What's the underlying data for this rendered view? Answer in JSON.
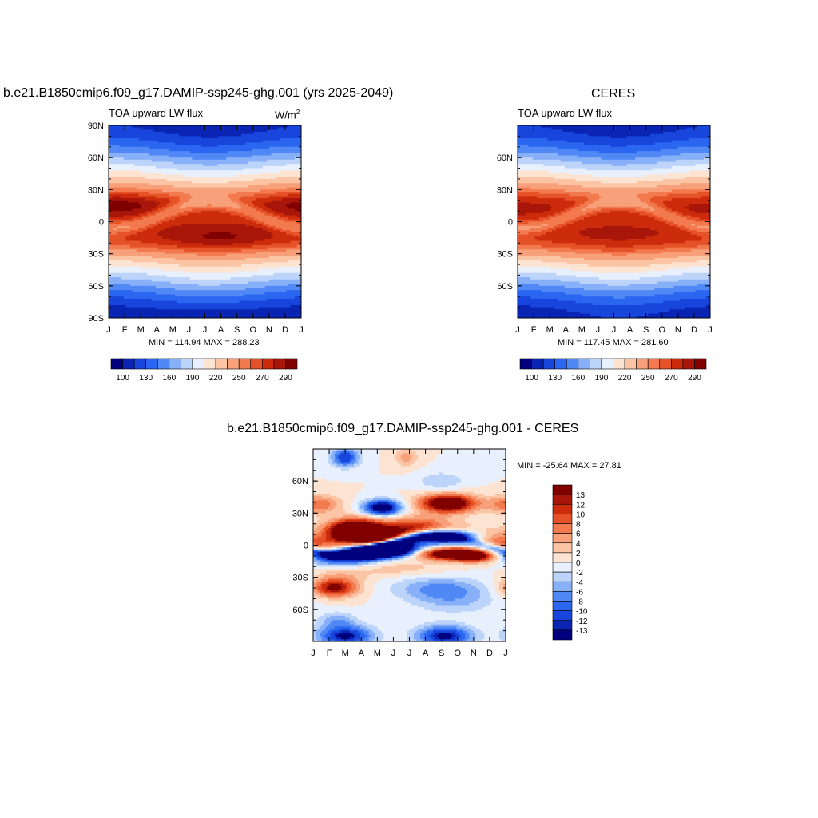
{
  "panels": {
    "left": {
      "title": "b.e21.B1850cmip6.f09_g17.DAMIP-ssp245-ghg.001 (yrs 2025-2049)",
      "variable": "TOA upward LW flux",
      "units_base": "W/m",
      "units_exp": "2",
      "minmax": "MIN = 114.94 MAX = 288.23"
    },
    "right": {
      "title": "CERES",
      "variable": "TOA upward LW flux",
      "minmax": "MIN = 117.45 MAX = 281.60"
    },
    "diff": {
      "title": "b.e21.B1850cmip6.f09_g17.DAMIP-ssp245-ghg.001 - CERES",
      "minmax": "MIN = -25.64 MAX =  27.81"
    }
  },
  "chart_data": [
    {
      "type": "heatmap",
      "title": "b.e21.B1850cmip6.f09_g17.DAMIP-ssp245-ghg.001 (yrs 2025-2049)",
      "xticks": [
        "J",
        "F",
        "M",
        "A",
        "M",
        "J",
        "J",
        "A",
        "S",
        "O",
        "N",
        "D",
        "J"
      ],
      "yticks": [
        "90N",
        "60N",
        "30N",
        "0",
        "30S",
        "60S",
        "90S"
      ],
      "ylim": [
        -90,
        90
      ],
      "min": 114.94,
      "max": 288.23,
      "colorbar_labels": [
        "100",
        "130",
        "160",
        "190",
        "220",
        "250",
        "270",
        "290"
      ]
    },
    {
      "type": "heatmap",
      "title": "CERES",
      "xticks": [
        "J",
        "F",
        "M",
        "A",
        "M",
        "J",
        "J",
        "A",
        "S",
        "O",
        "N",
        "D",
        "J"
      ],
      "yticks": [
        "60N",
        "30N",
        "0",
        "30S",
        "60S"
      ],
      "ylim": [
        -90,
        90
      ],
      "min": 117.45,
      "max": 281.6,
      "colorbar_labels": [
        "100",
        "130",
        "160",
        "190",
        "220",
        "250",
        "270",
        "290"
      ]
    },
    {
      "type": "heatmap",
      "title": "b.e21.B1850cmip6.f09_g17.DAMIP-ssp245-ghg.001 - CERES",
      "xticks": [
        "J",
        "F",
        "M",
        "A",
        "M",
        "J",
        "J",
        "A",
        "S",
        "O",
        "N",
        "D",
        "J"
      ],
      "yticks": [
        "60N",
        "30N",
        "0",
        "30S",
        "60S"
      ],
      "ylim": [
        -90,
        90
      ],
      "min": -25.64,
      "max": 27.81,
      "colorbar_labels": [
        "13",
        "12",
        "10",
        "8",
        "6",
        "4",
        "2",
        "0",
        "-2",
        "-4",
        "-6",
        "-8",
        "-10",
        "-12",
        "-13"
      ]
    }
  ],
  "palettes": {
    "abs": [
      "#00007f",
      "#0a24b4",
      "#1846dc",
      "#2a66f0",
      "#5089f5",
      "#88b0f8",
      "#bcd4fa",
      "#e8f0fd",
      "#fde4d2",
      "#fbc4a4",
      "#f7a07a",
      "#f27a4e",
      "#e65228",
      "#cc2c0c",
      "#a8160a",
      "#800000"
    ],
    "diff": [
      "#800000",
      "#a8160a",
      "#cc2c0c",
      "#e65228",
      "#f27a4e",
      "#f7a07a",
      "#fbc4a4",
      "#fde4d2",
      "#e8f0fd",
      "#bcd4fa",
      "#88b0f8",
      "#5089f5",
      "#2a66f0",
      "#1846dc",
      "#0a24b4",
      "#00007f"
    ]
  }
}
